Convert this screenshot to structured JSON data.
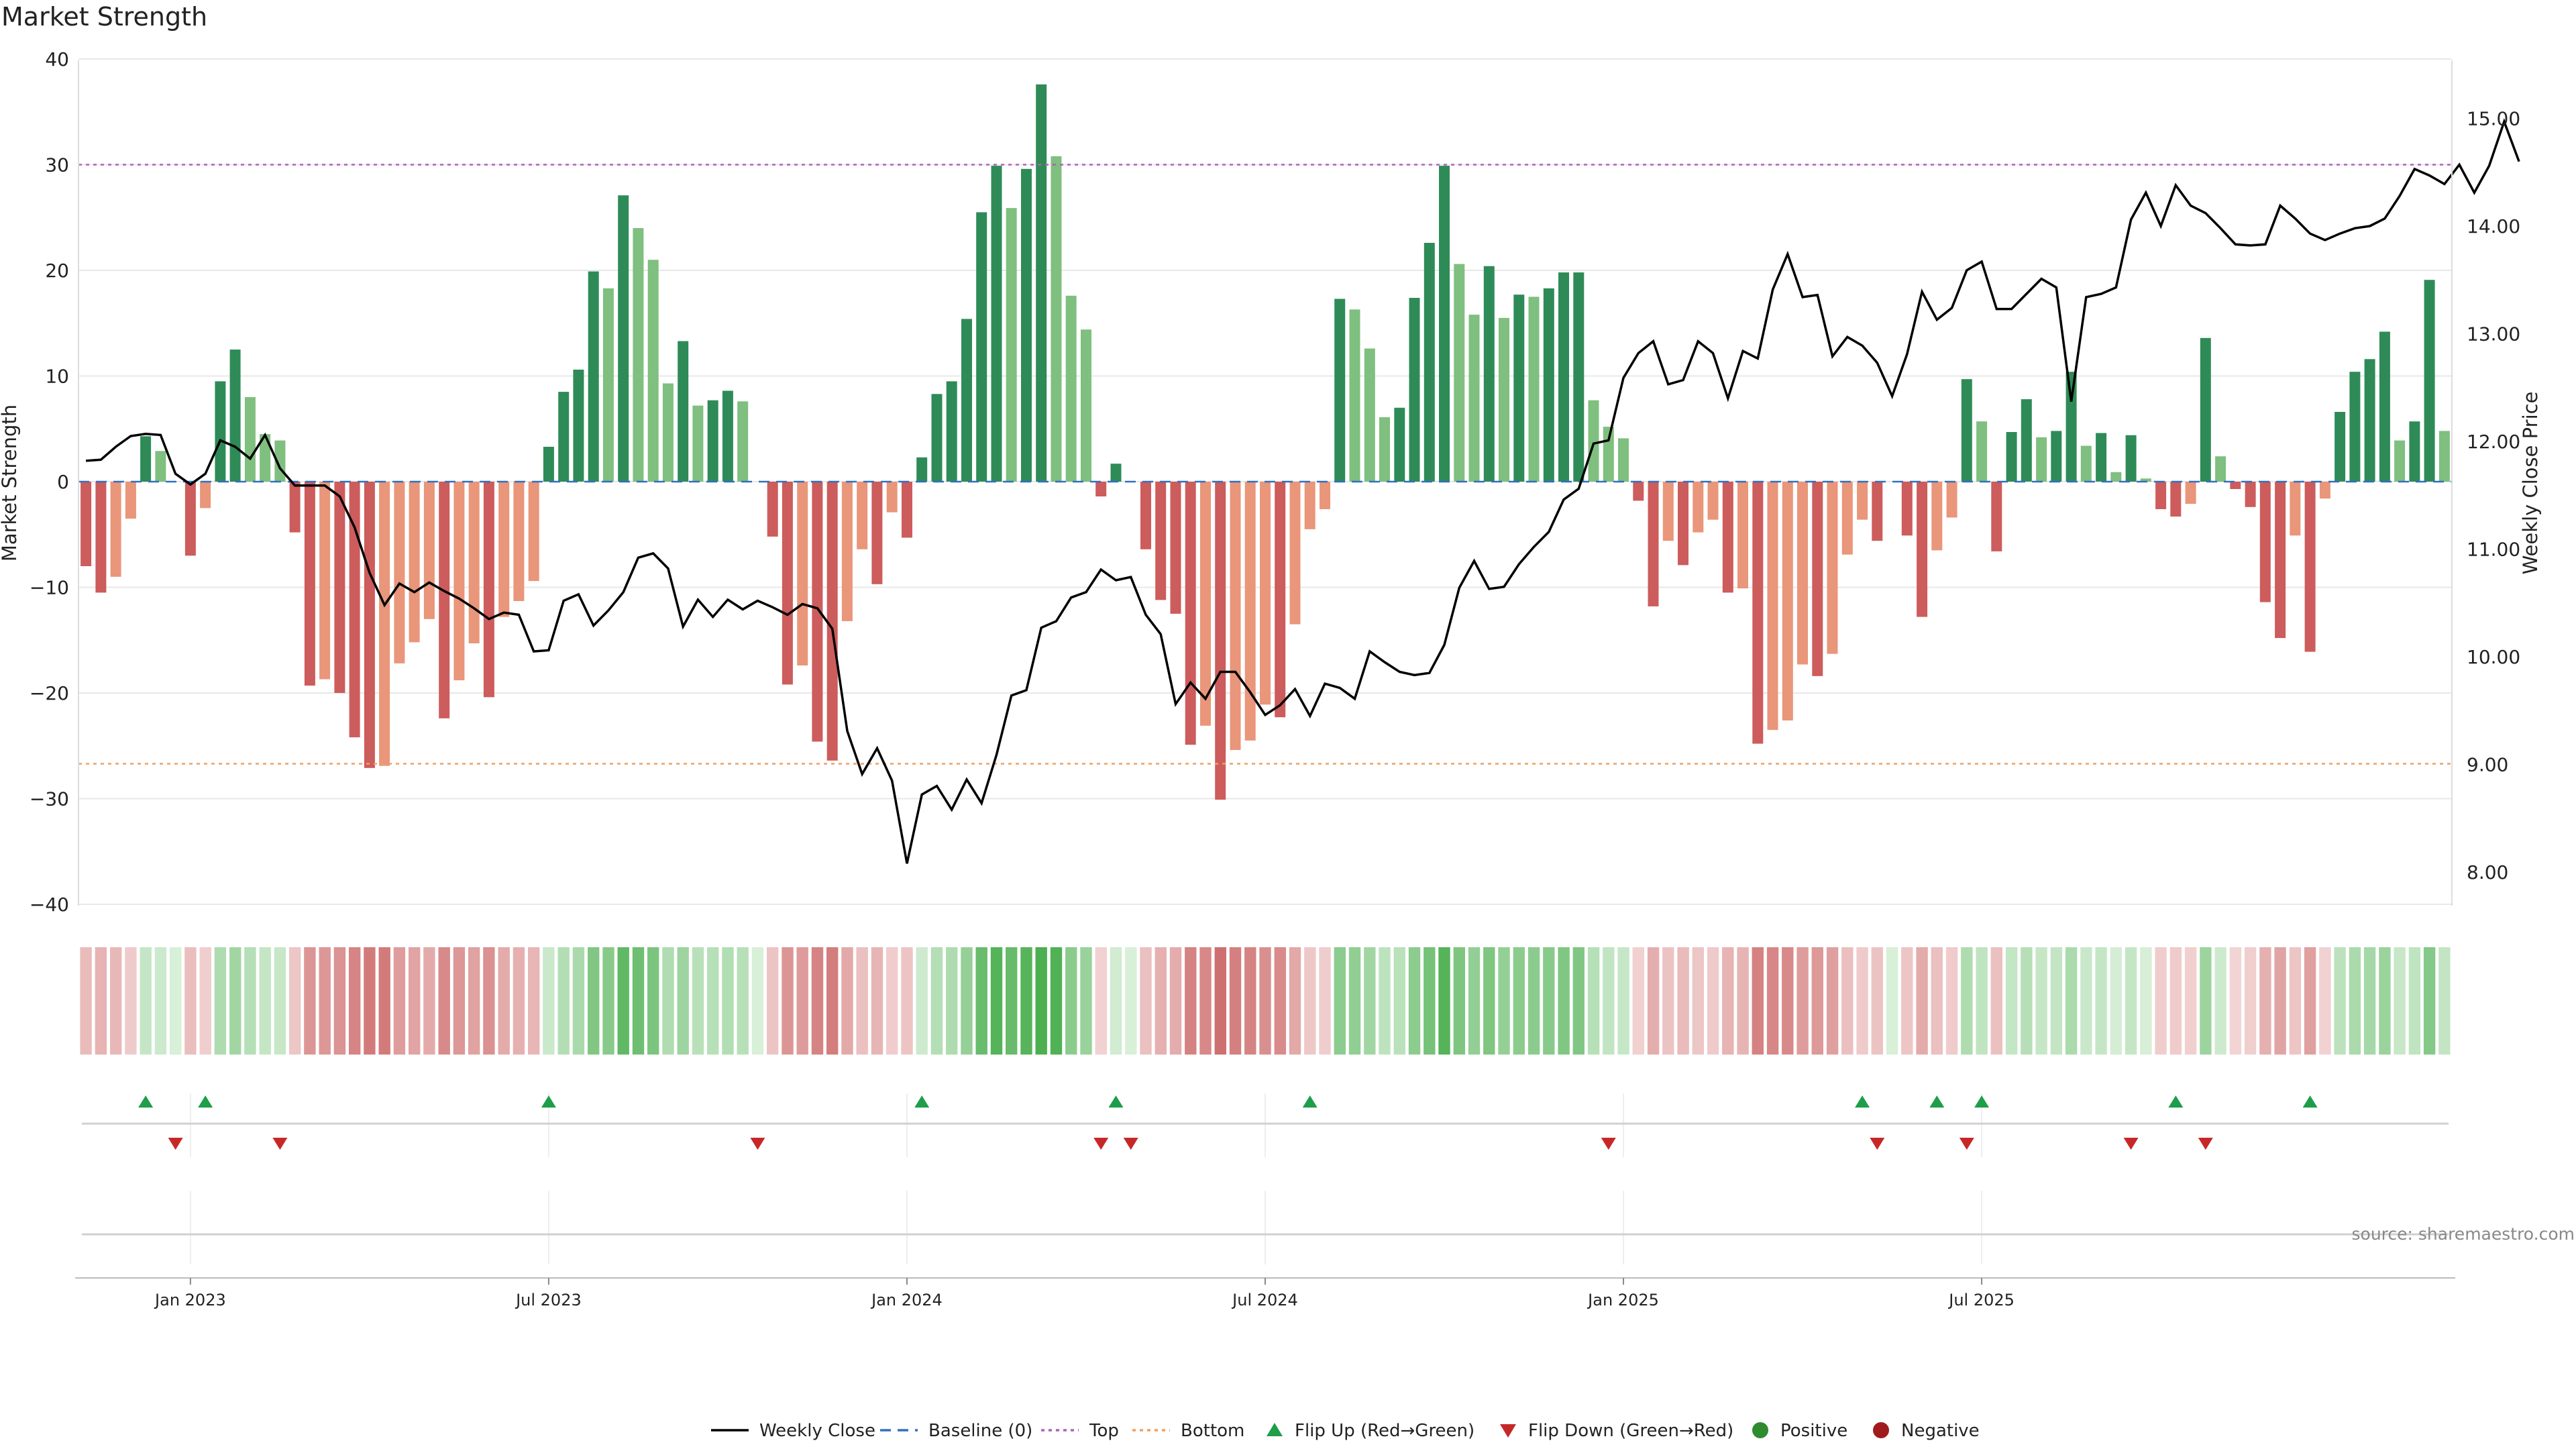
{
  "chart_data": {
    "type": "bar",
    "title": "Market Strength",
    "ylabel": "Market Strength",
    "y2label": "Weekly Close Price",
    "ylim": [
      -42,
      40
    ],
    "y2lim": [
      7.4,
      15.45
    ],
    "yticks": [
      "40",
      "30",
      "20",
      "10",
      "0",
      "−10",
      "−20",
      "−30",
      "−40"
    ],
    "y2ticks": [
      "15.00",
      "14.00",
      "13.00",
      "12.00",
      "11.00",
      "10.00",
      "9.00",
      "8.00"
    ],
    "xticks": [
      "Jan 2023",
      "Jul 2023",
      "Jan 2024",
      "Jul 2024",
      "Jan 2025",
      "Jul 2025"
    ],
    "top_level": 30,
    "bottom_level": -26.7,
    "strength": [
      -8,
      -10.5,
      -9,
      -3.5,
      4.3,
      2.9,
      0,
      -7,
      -2.5,
      9.5,
      12.5,
      8,
      4.5,
      3.9,
      -4.8,
      -19.3,
      -18.7,
      -20,
      -24.2,
      -27.1,
      -26.9,
      -17.2,
      -15.2,
      -13,
      -22.4,
      -18.8,
      -15.3,
      -20.4,
      -12.8,
      -11.3,
      -9.4,
      3.3,
      8.5,
      10.6,
      19.9,
      18.3,
      27.1,
      24,
      21,
      9.3,
      13.3,
      7.2,
      7.7,
      8.6,
      7.6,
      0,
      -5.2,
      -19.2,
      -17.4,
      -24.6,
      -26.4,
      -13.2,
      -6.4,
      -9.7,
      -2.9,
      -5.3,
      2.3,
      8.3,
      9.5,
      15.4,
      25.5,
      29.9,
      25.9,
      29.6,
      37.6,
      30.8,
      17.6,
      14.4,
      -1.4,
      1.7,
      0,
      -6.4,
      -11.2,
      -12.5,
      -24.9,
      -23.1,
      -30.1,
      -25.4,
      -24.5,
      -21.1,
      -22.3,
      -13.5,
      -4.5,
      -2.6,
      17.3,
      16.3,
      12.6,
      6.1,
      7,
      17.4,
      22.6,
      29.9,
      20.6,
      15.8,
      20.4,
      15.5,
      17.7,
      17.5,
      18.3,
      19.8,
      19.8,
      7.7,
      5.2,
      4.1,
      -1.8,
      -11.8,
      -5.6,
      -7.9,
      -4.8,
      -3.6,
      -10.5,
      -10.1,
      -24.8,
      -23.5,
      -22.6,
      -17.3,
      -18.4,
      -16.3,
      -6.9,
      -3.6,
      -5.6,
      0,
      -5.1,
      -12.8,
      -6.5,
      -3.4,
      9.7,
      5.7,
      -6.6,
      4.7,
      7.8,
      4.2,
      4.8,
      10.4,
      3.4,
      4.6,
      0.9,
      4.4,
      0.3,
      -2.6,
      -3.3,
      -2.1,
      13.6,
      2.4,
      -0.7,
      -2.4,
      -11.4,
      -14.8,
      -5.1,
      -16.1,
      -1.6,
      6.6,
      10.4,
      11.6,
      14.2,
      3.9,
      5.7,
      19.1,
      4.8
    ],
    "weekly_close": [
      11.82,
      11.83,
      11.95,
      12.05,
      12.07,
      12.06,
      11.7,
      11.6,
      11.7,
      12.01,
      11.95,
      11.84,
      12.06,
      11.75,
      11.59,
      11.59,
      11.59,
      11.49,
      11.2,
      10.78,
      10.48,
      10.68,
      10.6,
      10.69,
      10.61,
      10.54,
      10.45,
      10.35,
      10.41,
      10.39,
      10.05,
      10.06,
      10.52,
      10.58,
      10.29,
      10.43,
      10.6,
      10.92,
      10.96,
      10.82,
      10.28,
      10.53,
      10.37,
      10.53,
      10.44,
      10.52,
      10.46,
      10.39,
      10.49,
      10.45,
      10.26,
      9.31,
      8.91,
      9.15,
      8.85,
      8.08,
      8.72,
      8.8,
      8.58,
      8.86,
      8.64,
      9.09,
      9.64,
      9.69,
      10.27,
      10.33,
      10.55,
      10.6,
      10.81,
      10.71,
      10.74,
      10.39,
      10.21,
      9.56,
      9.76,
      9.61,
      9.86,
      9.86,
      9.67,
      9.46,
      9.55,
      9.7,
      9.45,
      9.75,
      9.71,
      9.61,
      10.05,
      9.95,
      9.86,
      9.83,
      9.85,
      10.11,
      10.64,
      10.89,
      10.63,
      10.65,
      10.86,
      11.02,
      11.16,
      11.46,
      11.56,
      11.98,
      12.01,
      12.59,
      12.82,
      12.93,
      12.53,
      12.57,
      12.93,
      12.82,
      12.4,
      12.84,
      12.77,
      13.41,
      13.74,
      13.34,
      13.36,
      12.79,
      12.97,
      12.89,
      12.73,
      12.42,
      12.81,
      13.39,
      13.13,
      13.24,
      13.59,
      13.67,
      13.23,
      13.23,
      13.37,
      13.51,
      13.43,
      12.37,
      13.34,
      13.37,
      13.43,
      14.06,
      14.31,
      14.0,
      14.38,
      14.19,
      14.12,
      13.98,
      13.83,
      13.82,
      13.83,
      14.19,
      14.07,
      13.93,
      13.87,
      13.93,
      13.98,
      14.0,
      14.07,
      14.28,
      14.53,
      14.47,
      14.39,
      14.57,
      14.31,
      14.56,
      14.97,
      14.6
    ],
    "flip_up": [
      4,
      8,
      31,
      56,
      69,
      82,
      119,
      124,
      127,
      140,
      149
    ],
    "flip_down": [
      6,
      13,
      45,
      68,
      70,
      102,
      120,
      126,
      137,
      142
    ],
    "legend": [
      "Weekly Close",
      "Baseline (0)",
      "Top",
      "Bottom",
      "Flip Up (Red→Green)",
      "Flip Down (Green→Red)",
      "Positive",
      "Negative"
    ],
    "source_note": "source: sharemaestro.com",
    "colors": {
      "strong_positive": "#2e8b57",
      "weak_positive": "#7fbf7f",
      "strong_negative": "#cd5c5c",
      "weak_negative": "#e9967a",
      "price_line": "#000000",
      "top_line": "#b05fc0",
      "bottom_line": "#f0a060",
      "baseline": "#3070c0",
      "flip_up": "#1e9e4a",
      "flip_down": "#c62828",
      "positive_dot": "#2e8b2e",
      "negative_dot": "#a01c1c"
    }
  }
}
